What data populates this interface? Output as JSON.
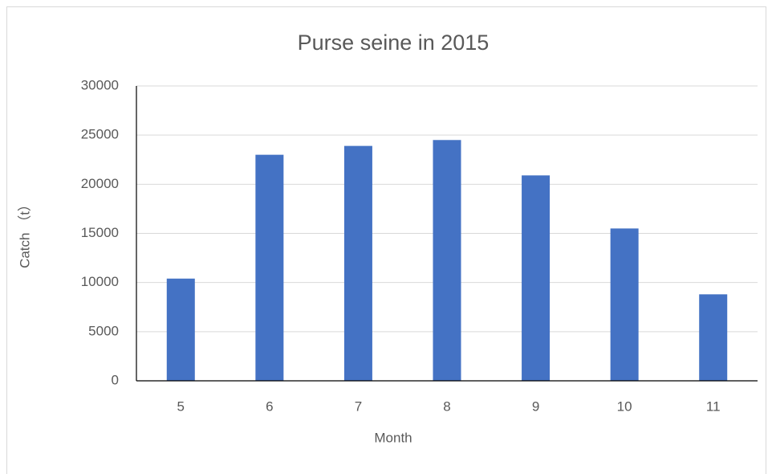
{
  "chart_data": {
    "type": "bar",
    "title": "Purse seine in 2015",
    "x_label": "Month",
    "y_label": "Catch （t）",
    "categories": [
      "5",
      "6",
      "7",
      "8",
      "9",
      "10",
      "11"
    ],
    "values": [
      10400,
      23000,
      23900,
      24500,
      20900,
      15500,
      8800
    ],
    "color": "#4472c4",
    "ylim": [
      0,
      30000
    ],
    "yticks": [
      0,
      5000,
      10000,
      15000,
      20000,
      25000,
      30000
    ],
    "grid": true
  }
}
